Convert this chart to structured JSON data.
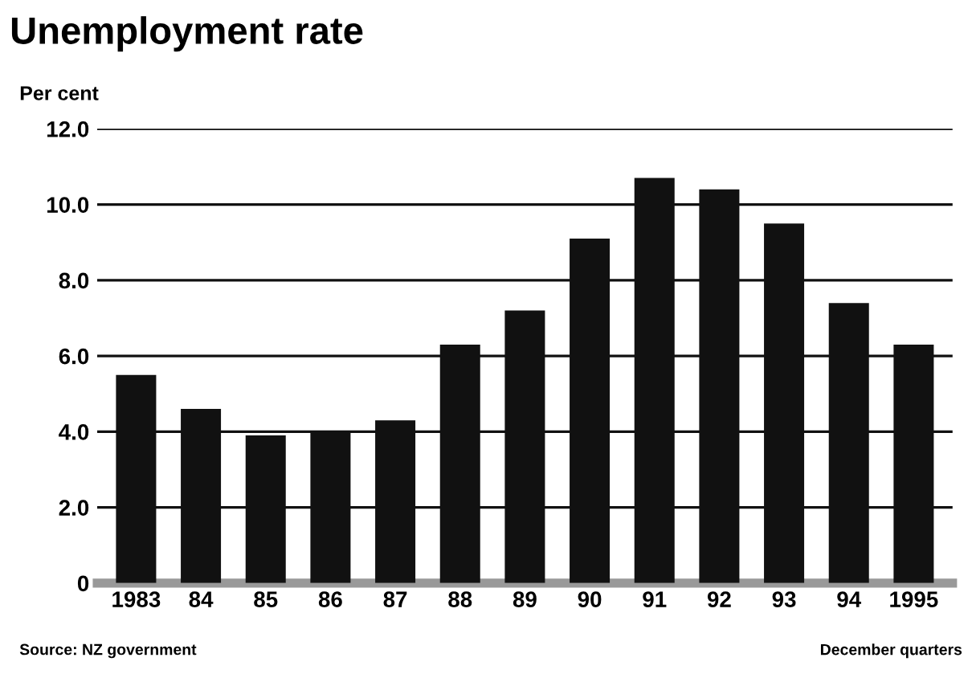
{
  "chart_data": {
    "type": "bar",
    "title": "Unemployment rate",
    "ylabel": "Per cent",
    "categories": [
      "1983",
      "84",
      "85",
      "86",
      "87",
      "88",
      "89",
      "90",
      "91",
      "92",
      "93",
      "94",
      "1995"
    ],
    "values": [
      5.5,
      4.6,
      3.9,
      4.0,
      4.3,
      6.3,
      7.2,
      9.1,
      10.7,
      10.4,
      9.5,
      7.4,
      6.3
    ],
    "color": "#111111",
    "ylim": [
      0,
      12
    ],
    "yticks": [
      0,
      {
        "value": 2,
        "label": "2.0"
      },
      {
        "value": 4,
        "label": "4.0"
      },
      {
        "value": 6,
        "label": "6.0"
      },
      {
        "value": 8,
        "label": "8.0"
      },
      {
        "value": 10,
        "label": "10.0"
      },
      {
        "value": 12,
        "label": "12.0"
      }
    ],
    "grid": "y",
    "annotations": [
      "Source: NZ government",
      "December quarters"
    ]
  }
}
